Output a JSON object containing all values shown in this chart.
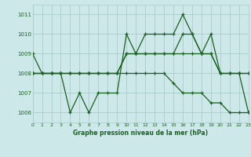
{
  "title": "Graphe pression niveau de la mer (hPa)",
  "bg_color": "#cce8e8",
  "grid_color": "#aacccc",
  "line_color": "#1a6020",
  "xlim": [
    0,
    23
  ],
  "ylim": [
    1005.5,
    1011.5
  ],
  "yticks": [
    1006,
    1007,
    1008,
    1009,
    1010,
    1011
  ],
  "xticks": [
    0,
    1,
    2,
    3,
    4,
    5,
    6,
    7,
    8,
    9,
    10,
    11,
    12,
    13,
    14,
    15,
    16,
    17,
    18,
    19,
    20,
    21,
    22,
    23
  ],
  "series": [
    [
      1009,
      1008,
      1008,
      1008,
      1006,
      1007,
      1006,
      1007,
      1007,
      1007,
      1010,
      1009,
      1010,
      1010,
      1010,
      1010,
      1011,
      1010,
      1009,
      1010,
      1008,
      1008,
      1008,
      1006
    ],
    [
      1008,
      1008,
      1008,
      1008,
      1008,
      1008,
      1008,
      1008,
      1008,
      1008,
      1009,
      1009,
      1009,
      1009,
      1009,
      1009,
      1009,
      1009,
      1009,
      1009,
      1008,
      1008,
      1008,
      1008
    ],
    [
      1008,
      1008,
      1008,
      1008,
      1008,
      1008,
      1008,
      1008,
      1008,
      1008,
      1009,
      1009,
      1009,
      1009,
      1009,
      1009,
      1010,
      1010,
      1009,
      1009,
      1008,
      1008,
      1008,
      1008
    ],
    [
      1008,
      1008,
      1008,
      1008,
      1008,
      1008,
      1008,
      1008,
      1008,
      1008,
      1008,
      1008,
      1008,
      1008,
      1008,
      1007.5,
      1007,
      1007,
      1007,
      1006.5,
      1006.5,
      1006,
      1006,
      1006
    ]
  ]
}
